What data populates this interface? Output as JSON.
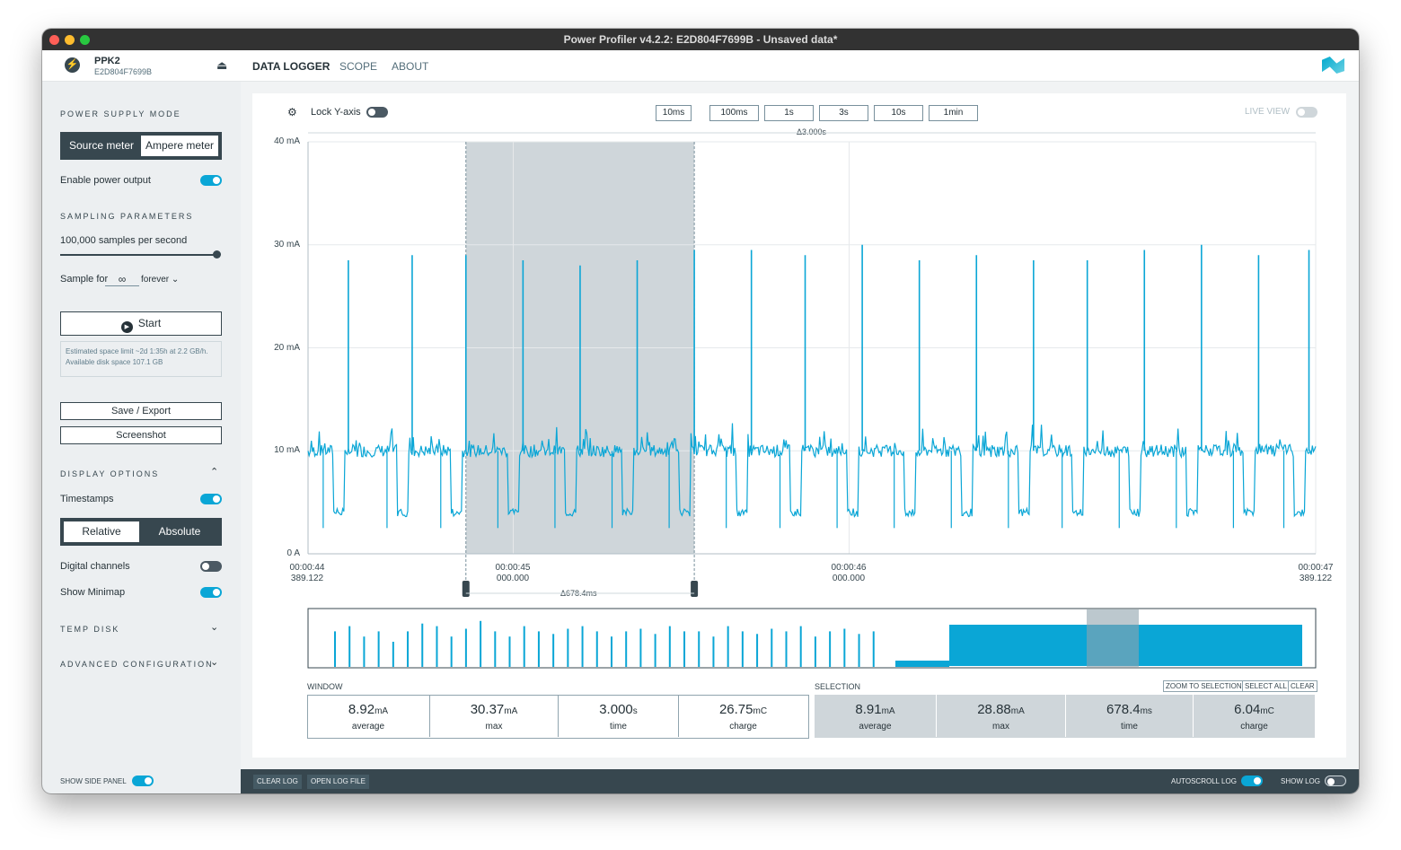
{
  "window": {
    "title": "Power Profiler v4.2.2: E2D804F7699B - Unsaved data*"
  },
  "header": {
    "device_name": "PPK2",
    "device_serial": "E2D804F7699B",
    "tabs": [
      "DATA LOGGER",
      "SCOPE",
      "ABOUT"
    ],
    "active_tab": "DATA LOGGER"
  },
  "sidebar": {
    "power_supply_title": "POWER SUPPLY MODE",
    "mode_source": "Source meter",
    "mode_ampere": "Ampere meter",
    "mode_selected": "Ampere meter",
    "enable_power_label": "Enable power output",
    "enable_power_on": true,
    "sampling_title": "SAMPLING PARAMETERS",
    "samples_label": "100,000 samples per second",
    "sample_rate_fraction": 1.0,
    "sample_for_label": "Sample for",
    "sample_for_value": "∞",
    "sample_for_unit": "forever",
    "start_label": "Start",
    "estimate_text": "Estimated space limit ~2d 1:35h at 2.2 GB/h. Available disk space 107.1 GB",
    "save_label": "Save / Export",
    "screenshot_label": "Screenshot",
    "display_title": "DISPLAY OPTIONS",
    "timestamps_label": "Timestamps",
    "timestamps_on": true,
    "relative_label": "Relative",
    "absolute_label": "Absolute",
    "timestamp_mode": "Relative",
    "digital_label": "Digital channels",
    "digital_on": false,
    "minimap_label": "Show Minimap",
    "minimap_on": true,
    "temp_disk_title": "TEMP DISK",
    "advanced_title": "ADVANCED CONFIGURATION"
  },
  "toolbar": {
    "lock_label": "Lock Y-axis",
    "lock_on": false,
    "time_buttons": [
      "10ms",
      "100ms",
      "1s",
      "3s",
      "10s",
      "1min"
    ],
    "live_view_label": "LIVE VIEW",
    "live_view_on": false
  },
  "chart": {
    "window_delta": "Δ3.000s",
    "selection_delta": "Δ678.4ms",
    "y_ticks": [
      "40 mA",
      "30 mA",
      "20 mA",
      "10 mA",
      "0 A"
    ],
    "x_ticks": [
      {
        "t": "00:00:44",
        "s": "389.122"
      },
      {
        "t": "00:00:45",
        "s": "000.000"
      },
      {
        "t": "00:00:46",
        "s": "000.000"
      },
      {
        "t": "00:00:47",
        "s": "389.122"
      }
    ]
  },
  "chart_data": {
    "type": "line",
    "title": "",
    "xlabel": "",
    "ylabel": "",
    "units": "mA",
    "ylim": [
      0,
      40
    ],
    "xlim_s": [
      0,
      3.0
    ],
    "x_tick_values_s": [
      0,
      0.611,
      1.611,
      3.0
    ],
    "baseline_mA": 10.0,
    "dip_mA": 4.0,
    "spike_times_s": [
      0.12,
      0.31,
      0.47,
      0.64,
      0.81,
      0.98,
      1.15,
      1.32,
      1.48,
      1.65,
      1.82,
      1.99,
      2.16,
      2.32,
      2.49,
      2.66,
      2.83,
      2.98
    ],
    "spike_peaks_mA": [
      28.5,
      29.0,
      29.0,
      28.5,
      28.0,
      28.5,
      29.5,
      29.5,
      29.0,
      30.0,
      28.5,
      29.0,
      28.5,
      28.5,
      29.5,
      30.0,
      29.0,
      29.5
    ],
    "selection_s": [
      0.47,
      1.15
    ]
  },
  "minimap_data": {
    "spike_heights": [
      0.7,
      0.8,
      0.6,
      0.7,
      0.5,
      0.7,
      0.85,
      0.8,
      0.6,
      0.75,
      0.9,
      0.7,
      0.6,
      0.8,
      0.7,
      0.65,
      0.75,
      0.8,
      0.7,
      0.6,
      0.7,
      0.75,
      0.65,
      0.8,
      0.7,
      0.7,
      0.6,
      0.8,
      0.7,
      0.65,
      0.75,
      0.7,
      0.8,
      0.6,
      0.7,
      0.75,
      0.65,
      0.7
    ]
  },
  "stats": {
    "window_label": "WINDOW",
    "selection_label": "SELECTION",
    "zoom_label": "ZOOM TO SELECTION",
    "select_all_label": "SELECT ALL",
    "clear_label": "CLEAR",
    "window": [
      {
        "value": "8.92",
        "unit": "mA",
        "name": "average"
      },
      {
        "value": "30.37",
        "unit": "mA",
        "name": "max"
      },
      {
        "value": "3.000",
        "unit": "s",
        "name": "time"
      },
      {
        "value": "26.75",
        "unit": "mC",
        "name": "charge"
      }
    ],
    "selection": [
      {
        "value": "8.91",
        "unit": "mA",
        "name": "average"
      },
      {
        "value": "28.88",
        "unit": "mA",
        "name": "max"
      },
      {
        "value": "678.4",
        "unit": "ms",
        "name": "time"
      },
      {
        "value": "6.04",
        "unit": "mC",
        "name": "charge"
      }
    ]
  },
  "footer": {
    "show_side_panel": "SHOW SIDE PANEL",
    "clear_log": "CLEAR LOG",
    "open_log": "OPEN LOG FILE",
    "autoscroll": "AUTOSCROLL LOG",
    "show_log": "SHOW LOG"
  },
  "colors": {
    "trace": "#0aa6d6",
    "selection": "#cfd6da",
    "sidebar_dark": "#37474f"
  }
}
